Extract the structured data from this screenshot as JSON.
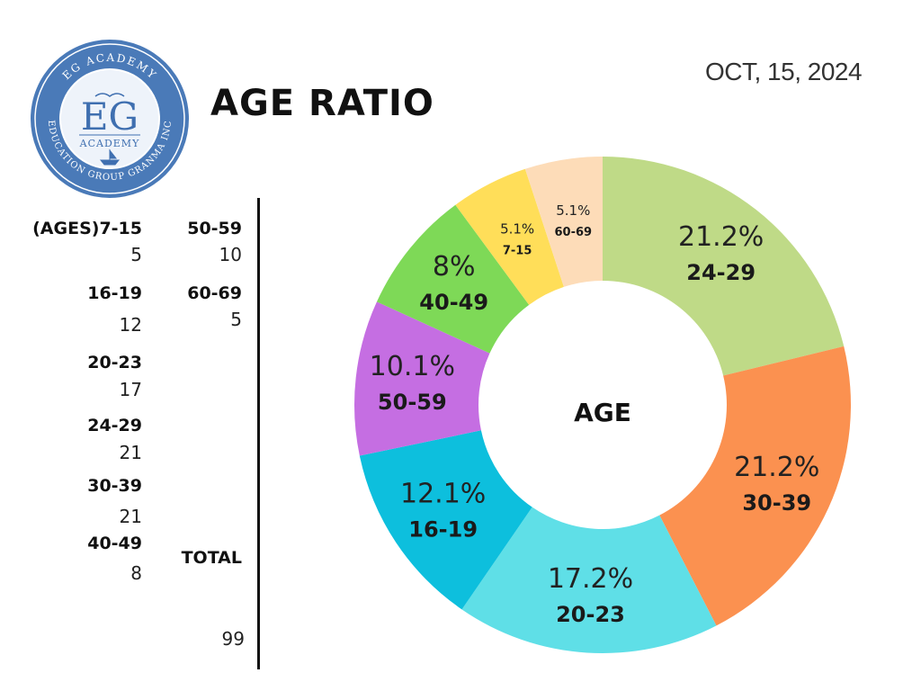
{
  "header": {
    "title": "AGE RATIO",
    "date": "OCT, 15, 2024"
  },
  "logo": {
    "initials": "EG",
    "academy": "ACADEMY",
    "ring_top": "EG ACADEMY",
    "ring_bottom": "EDUCATION GROUP GRANMA INC",
    "colors": {
      "ring": "#4a7ab8",
      "inner": "#eef3fa",
      "text": "#3f6fb0"
    }
  },
  "table": {
    "left_column": [
      {
        "label": "(AGES)7-15",
        "value": "5"
      },
      {
        "label": "16-19",
        "value": "12"
      },
      {
        "label": "20-23",
        "value": "17"
      },
      {
        "label": "24-29",
        "value": "21"
      },
      {
        "label": "30-39",
        "value": "21"
      },
      {
        "label": "40-49",
        "value": "8"
      }
    ],
    "right_column": [
      {
        "label": "50-59",
        "value": "10"
      },
      {
        "label": "60-69",
        "value": "5"
      }
    ],
    "total_label": "TOTAL",
    "total_value": "99"
  },
  "chart_data": {
    "type": "pie",
    "donut": true,
    "center_label": "AGE",
    "start_angle_deg": 0,
    "direction": "clockwise",
    "slices": [
      {
        "label": "24-29",
        "value": 21,
        "percent": "21.2%",
        "color": "#bfda87"
      },
      {
        "label": "30-39",
        "value": 21,
        "percent": "21.2%",
        "color": "#fb9150"
      },
      {
        "label": "20-23",
        "value": 17,
        "percent": "17.2%",
        "color": "#5fdfe7"
      },
      {
        "label": "16-19",
        "value": 12,
        "percent": "12.1%",
        "color": "#0dbfdd"
      },
      {
        "label": "50-59",
        "value": 10,
        "percent": "10.1%",
        "color": "#c56ee2"
      },
      {
        "label": "40-49",
        "value": 8,
        "percent": "8%",
        "color": "#7ed957"
      },
      {
        "label": "7-15",
        "value": 5,
        "percent": "5.1%",
        "color": "#ffde59"
      },
      {
        "label": "60-69",
        "value": 5,
        "percent": "5.1%",
        "color": "#fddcb8"
      }
    ]
  }
}
